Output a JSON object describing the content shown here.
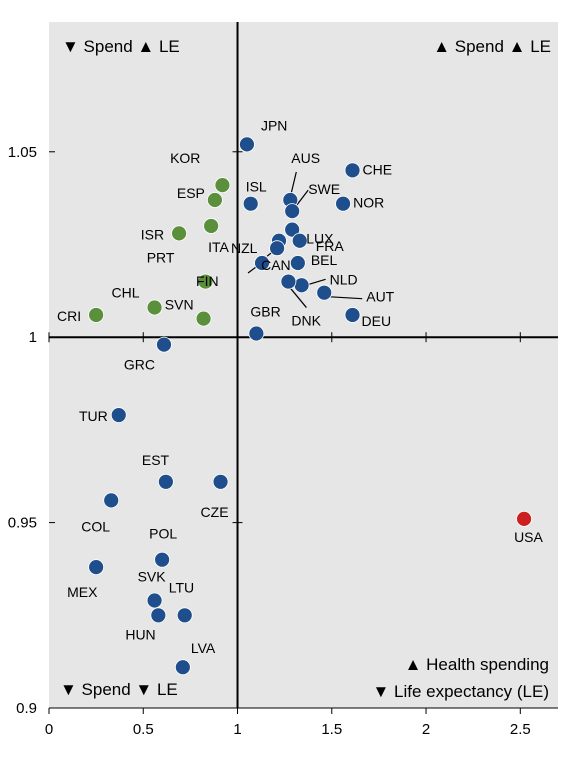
{
  "chart_data": {
    "type": "scatter",
    "xlim": [
      0,
      2.7
    ],
    "ylim": [
      0.9,
      1.085
    ],
    "x_ticks": [
      "0",
      "0.5",
      "1",
      "1.5",
      "2",
      "2.5"
    ],
    "y_ticks": [
      "0.9",
      "0.95",
      "1",
      "1.05"
    ],
    "grid": false,
    "background": "#e6e6e6",
    "quadrant_labels": {
      "top_left": "▼ Spend ▲ LE",
      "top_right": "▲ Spend ▲ LE",
      "bottom_left": "▼ Spend ▼ LE",
      "legend_line1": "▲ Health spending",
      "legend_line2": "▼ Life expectancy (LE)"
    },
    "colors": {
      "main": "#1f4e8c",
      "lower_spend_higher_le": "#5a8f3c",
      "usa": "#cc1f1f"
    },
    "points": [
      {
        "label": "JPN",
        "x": 1.05,
        "y": 1.052,
        "group": "main"
      },
      {
        "label": "KOR",
        "x": 0.92,
        "y": 1.041,
        "group": "lower_spend_higher_le"
      },
      {
        "label": "ESP",
        "x": 0.88,
        "y": 1.037,
        "group": "lower_spend_higher_le"
      },
      {
        "label": "ISR",
        "x": 0.69,
        "y": 1.028,
        "group": "lower_spend_higher_le"
      },
      {
        "label": "ITA",
        "x": 0.86,
        "y": 1.03,
        "group": "lower_spend_higher_le"
      },
      {
        "label": "PRT",
        "x": 0.83,
        "y": 1.015,
        "group": "lower_spend_higher_le"
      },
      {
        "label": "CHL",
        "x": 0.56,
        "y": 1.008,
        "group": "lower_spend_higher_le"
      },
      {
        "label": "SVN",
        "x": 0.82,
        "y": 1.005,
        "group": "lower_spend_higher_le"
      },
      {
        "label": "CRI",
        "x": 0.25,
        "y": 1.006,
        "group": "lower_spend_higher_le"
      },
      {
        "label": "ISL",
        "x": 1.07,
        "y": 1.036,
        "group": "main"
      },
      {
        "label": "AUS",
        "x": 1.28,
        "y": 1.037,
        "group": "main"
      },
      {
        "label": "SWE",
        "x": 1.29,
        "y": 1.034,
        "group": "main"
      },
      {
        "label": "CHE",
        "x": 1.61,
        "y": 1.045,
        "group": "main"
      },
      {
        "label": "NOR",
        "x": 1.56,
        "y": 1.036,
        "group": "main"
      },
      {
        "label": "NZL",
        "x": 1.22,
        "y": 1.026,
        "group": "main"
      },
      {
        "label": "LUX",
        "x": 1.29,
        "y": 1.029,
        "group": "main"
      },
      {
        "label": "FRA",
        "x": 1.33,
        "y": 1.026,
        "group": "main"
      },
      {
        "label": "CAN",
        "x": 1.21,
        "y": 1.024,
        "group": "main"
      },
      {
        "label": "BEL",
        "x": 1.32,
        "y": 1.02,
        "group": "main"
      },
      {
        "label": "FIN",
        "x": 1.13,
        "y": 1.02,
        "group": "main"
      },
      {
        "label": "NLD",
        "x": 1.34,
        "y": 1.014,
        "group": "main"
      },
      {
        "label": "DNK",
        "x": 1.27,
        "y": 1.015,
        "group": "main"
      },
      {
        "label": "AUT",
        "x": 1.46,
        "y": 1.012,
        "group": "main"
      },
      {
        "label": "DEU",
        "x": 1.61,
        "y": 1.006,
        "group": "main"
      },
      {
        "label": "GBR",
        "x": 1.1,
        "y": 1.001,
        "group": "main"
      },
      {
        "label": "GRC",
        "x": 0.61,
        "y": 0.998,
        "group": "main"
      },
      {
        "label": "TUR",
        "x": 0.37,
        "y": 0.979,
        "group": "main"
      },
      {
        "label": "EST",
        "x": 0.62,
        "y": 0.961,
        "group": "main"
      },
      {
        "label": "CZE",
        "x": 0.91,
        "y": 0.961,
        "group": "main"
      },
      {
        "label": "COL",
        "x": 0.33,
        "y": 0.956,
        "group": "main"
      },
      {
        "label": "POL",
        "x": 0.6,
        "y": 0.94,
        "group": "main"
      },
      {
        "label": "MEX",
        "x": 0.25,
        "y": 0.938,
        "group": "main"
      },
      {
        "label": "SVK",
        "x": 0.56,
        "y": 0.929,
        "group": "main"
      },
      {
        "label": "LTU",
        "x": 0.72,
        "y": 0.925,
        "group": "main"
      },
      {
        "label": "HUN",
        "x": 0.58,
        "y": 0.925,
        "group": "main"
      },
      {
        "label": "LVA",
        "x": 0.71,
        "y": 0.911,
        "group": "main"
      },
      {
        "label": "USA",
        "x": 2.52,
        "y": 0.951,
        "group": "usa"
      }
    ]
  }
}
